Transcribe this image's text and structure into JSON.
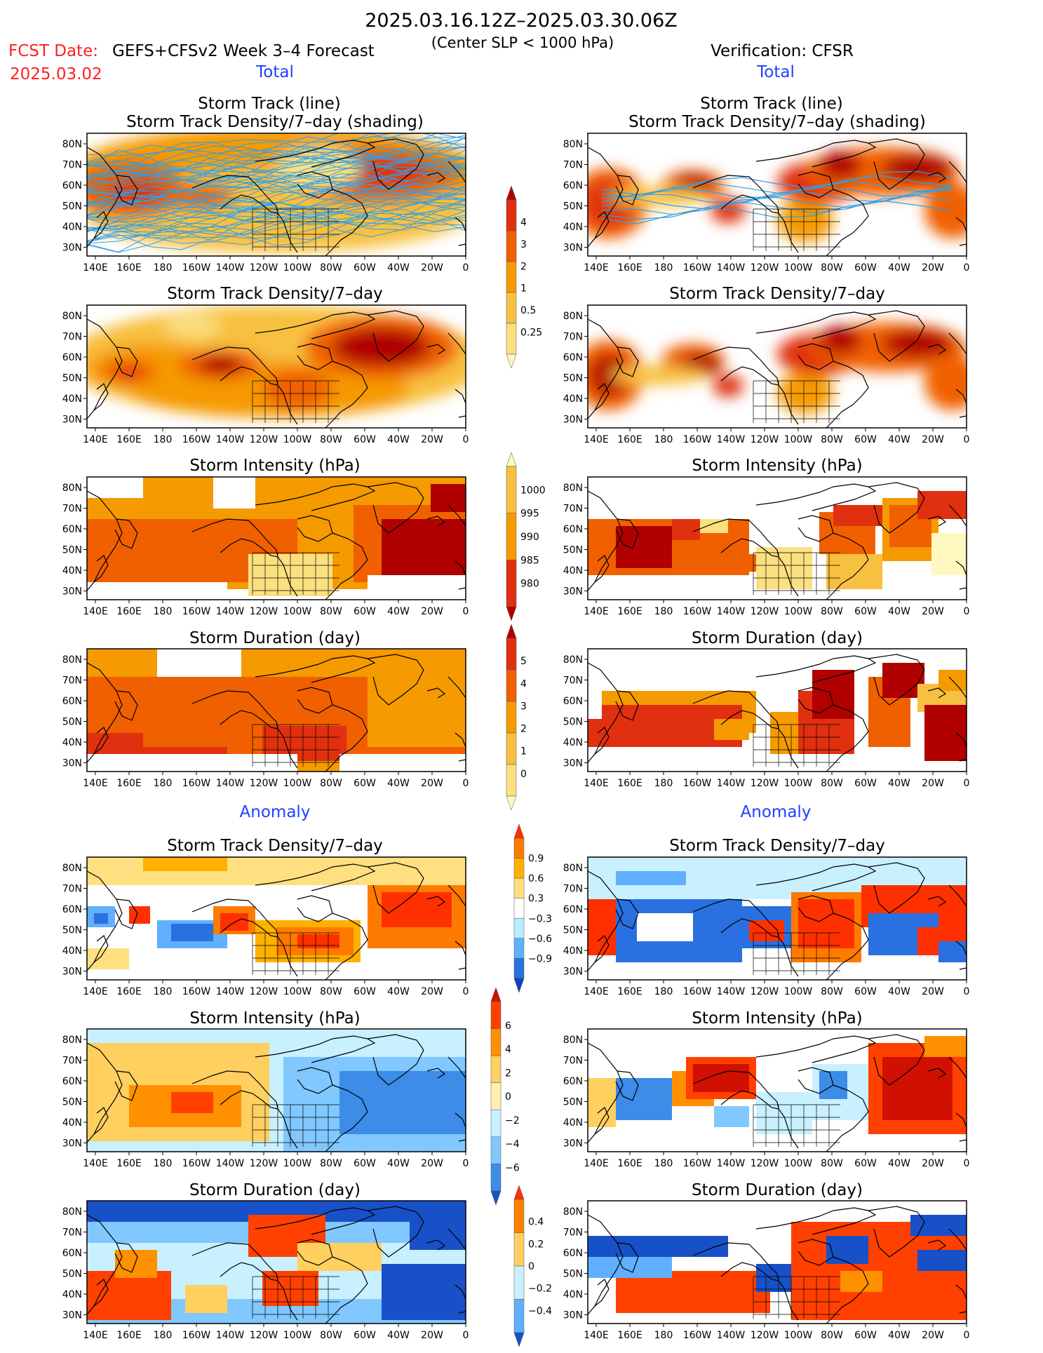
{
  "header": {
    "date_range": "2025.03.16.12Z–2025.03.30.06Z",
    "fcst_label": "FCST Date:",
    "fcst_date": "2025.03.02",
    "model_label": "GEFS+CFSv2 Week 3–4 Forecast",
    "criterion": "(Center SLP < 1000 hPa)",
    "verification_label": "Verification: CFSR"
  },
  "sections": {
    "total": "Total",
    "anomaly": "Anomaly"
  },
  "panel_titles": {
    "track_line": "Storm Track (line)",
    "track_shading": "Storm Track Density/7–day (shading)",
    "density": "Storm Track Density/7–day",
    "intensity": "Storm Intensity (hPa)",
    "duration": "Storm Duration (day)"
  },
  "map_axes": {
    "lon_labels": [
      "140E",
      "160E",
      "180",
      "160W",
      "140W",
      "120W",
      "100W",
      "80W",
      "60W",
      "40W",
      "20W",
      "0"
    ],
    "lat_labels": [
      "80N",
      "70N",
      "60N",
      "50N",
      "40N",
      "30N"
    ]
  },
  "colorbars": {
    "total_density": {
      "labels": [
        "4",
        "3",
        "2",
        "1",
        "0.5",
        "0.25"
      ],
      "colors": [
        "#b00000",
        "#e03010",
        "#f06000",
        "#f59a00",
        "#f8c040",
        "#fbe080",
        "#fff8c0"
      ]
    },
    "total_intensity": {
      "labels": [
        "1000",
        "995",
        "990",
        "985",
        "980"
      ],
      "colors": [
        "#fff8c0",
        "#f8c040",
        "#f59a00",
        "#e03010",
        "#b00000"
      ]
    },
    "total_duration": {
      "labels": [
        "5",
        "4",
        "3",
        "2",
        "1",
        "0"
      ],
      "colors": [
        "#b00000",
        "#e03010",
        "#f06000",
        "#f59a00",
        "#f8c040",
        "#fbe080",
        "#fff8c0"
      ]
    },
    "anom_density": {
      "labels": [
        "0.9",
        "0.6",
        "0.3",
        "−0.3",
        "−0.6",
        "−0.9"
      ],
      "colors": [
        "#ff3000",
        "#ff7a00",
        "#ffb000",
        "#ffe080",
        "#ffffff",
        "#b8ecff",
        "#60b0ff",
        "#2a70e0",
        "#1040c0"
      ]
    },
    "anom_intensity": {
      "labels": [
        "6",
        "4",
        "2",
        "0",
        "−2",
        "−4",
        "−6"
      ],
      "colors": [
        "#d01000",
        "#ff4000",
        "#ff9000",
        "#ffd060",
        "#fff0b0",
        "#c8f0ff",
        "#80c8ff",
        "#3c8ce8",
        "#1850c8"
      ]
    },
    "anom_duration": {
      "labels": [
        "0.4",
        "0.2",
        "0",
        "−0.2",
        "−0.4"
      ],
      "colors": [
        "#ff3000",
        "#ff8000",
        "#ffd060",
        "#c8f0ff",
        "#60b0ff",
        "#1850c8"
      ]
    }
  }
}
